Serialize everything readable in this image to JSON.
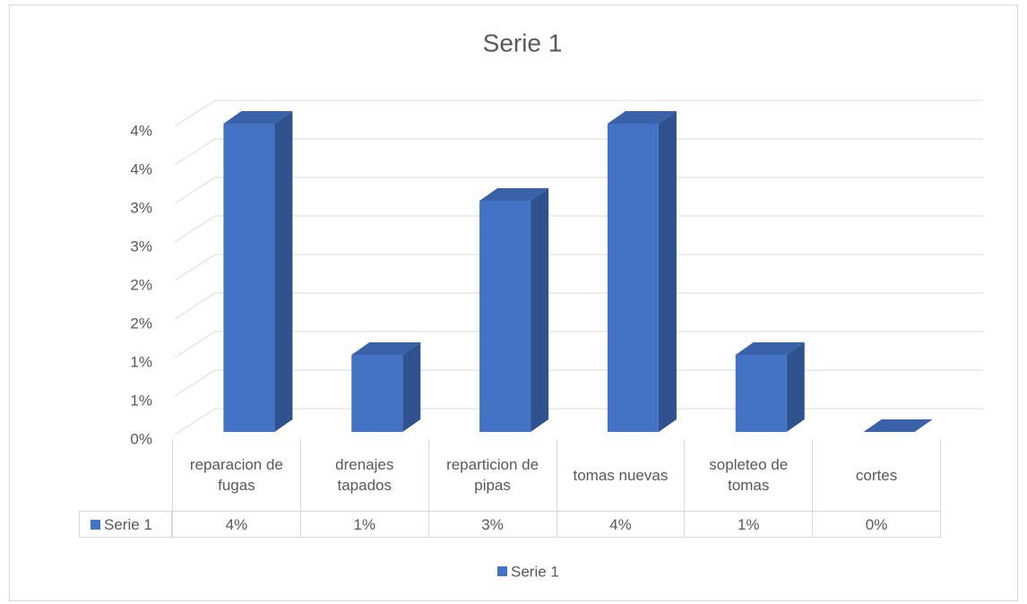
{
  "chart_data": {
    "type": "bar3d",
    "title": "Serie 1",
    "categories": [
      "reparacion de fugas",
      "drenajes tapados",
      "reparticion de pipas",
      "tomas nuevas",
      "sopleteo de tomas",
      "cortes"
    ],
    "series": [
      {
        "name": "Serie 1",
        "color": "#4472c4",
        "values": [
          4,
          1,
          3,
          4,
          1,
          0
        ],
        "value_labels": [
          "4%",
          "1%",
          "3%",
          "4%",
          "1%",
          "0%"
        ]
      }
    ],
    "ylim": [
      0,
      4
    ],
    "yticks": [
      {
        "value": 0,
        "label": "0%"
      },
      {
        "value": 0.5,
        "label": "1%"
      },
      {
        "value": 1,
        "label": "1%"
      },
      {
        "value": 1.5,
        "label": "2%"
      },
      {
        "value": 2,
        "label": "2%"
      },
      {
        "value": 2.5,
        "label": "3%"
      },
      {
        "value": 3,
        "label": "3%"
      },
      {
        "value": 3.5,
        "label": "4%"
      },
      {
        "value": 4,
        "label": "4%"
      }
    ],
    "grid": true,
    "legend": "bottom",
    "data_table": true
  }
}
